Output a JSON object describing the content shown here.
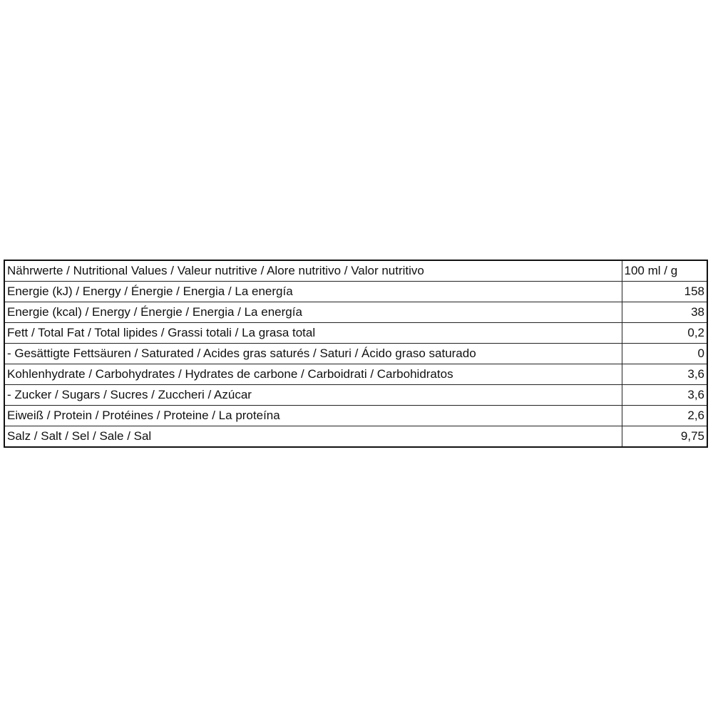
{
  "table": {
    "header": {
      "label": "Nährwerte / Nutritional Values / Valeur nutritive / Alore nutritivo / Valor nutritivo",
      "value": "100 ml / g"
    },
    "rows": [
      {
        "label": "Energie (kJ) / Energy / Énergie / Energia / La energía",
        "value": "158"
      },
      {
        "label": "Energie (kcal) / Energy / Énergie / Energia / La energía",
        "value": "38"
      },
      {
        "label": "Fett / Total Fat / Total lipides / Grassi totali / La grasa total",
        "value": "0,2"
      },
      {
        "label": "- Gesättigte Fettsäuren / Saturated / Acides gras saturés / Saturi / Ácido graso saturado",
        "value": "0"
      },
      {
        "label": "Kohlenhydrate / Carbohydrates / Hydrates de carbone / Carboidrati / Carbohidratos",
        "value": "3,6"
      },
      {
        "label": "- Zucker / Sugars / Sucres / Zuccheri / Azúcar",
        "value": "3,6"
      },
      {
        "label": "Eiweiß / Protein / Protéines / Proteine / La proteína",
        "value": "2,6"
      },
      {
        "label": "Salz / Salt / Sel / Sale / Sal",
        "value": "9,75"
      }
    ]
  }
}
